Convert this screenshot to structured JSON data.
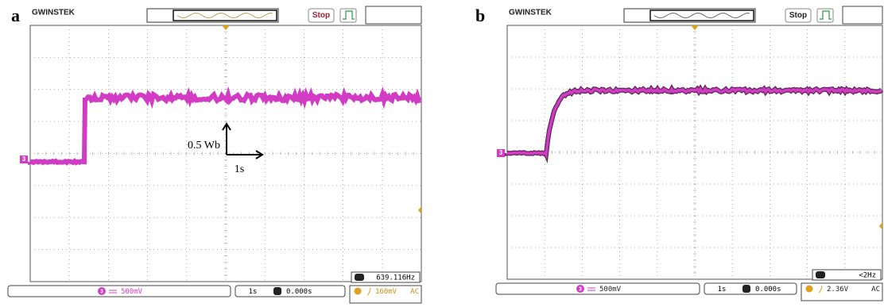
{
  "panels": [
    {
      "label": "a",
      "brand": "GWINSTEK",
      "stop": "Stop",
      "channel": "3",
      "frequency": "639.116Hz",
      "scale": "500mV",
      "timebase": "1s",
      "position": "0.000s",
      "trigger_level": "160mV",
      "coupling": "AC",
      "annotation": {
        "y_scale": "0.5 Wb",
        "x_scale": "1s"
      }
    },
    {
      "label": "b",
      "brand": "GWINSTEK",
      "stop": "Stop",
      "channel": "3",
      "frequency": "<2Hz",
      "scale": "500mV",
      "timebase": "1s",
      "position": "0.000s",
      "trigger_level": "2.36V",
      "coupling": "AC"
    }
  ]
}
